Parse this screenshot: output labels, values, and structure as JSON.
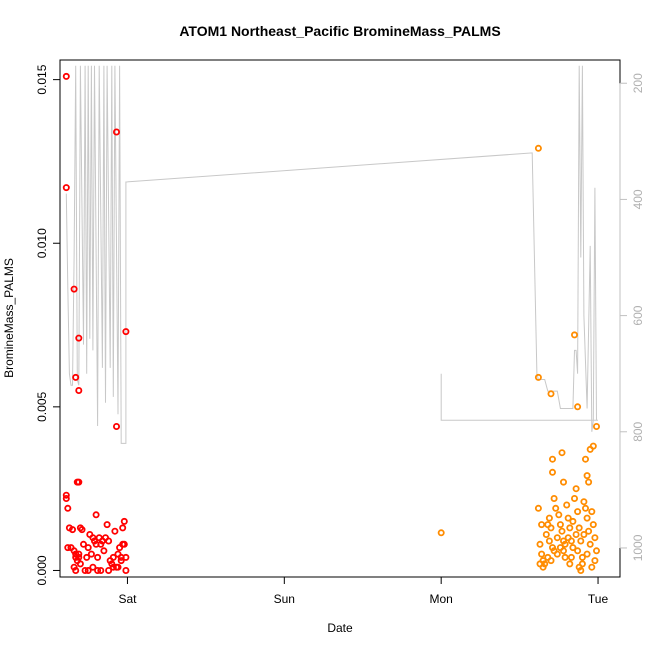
{
  "chart_data": {
    "type": "scatter",
    "title": "ATOM1 Northeast_Pacific BromineMass_PALMS",
    "xlabel": "Date",
    "ylabel": "BromineMass_PALMS",
    "x_ticks": [
      "Sat",
      "Sun",
      "Mon",
      "Tue"
    ],
    "x_unit": "days, 0 = Sat 00:00",
    "xlim": [
      -0.43,
      3.14
    ],
    "ylim": [
      -0.0002,
      0.0156
    ],
    "y_ticks": [
      0.0,
      0.005,
      0.01,
      0.015
    ],
    "y_tick_labels": [
      "0.000",
      "0.005",
      "0.010",
      "0.015"
    ],
    "y2_ticks": [
      200,
      400,
      600,
      800,
      1000
    ],
    "y2_tick_labels": [
      "200",
      "400",
      "600",
      "800",
      "1000"
    ],
    "y2lim": [
      1050,
      160
    ],
    "y2_axis_color": "#c0c0c0",
    "grid": false,
    "series": [
      {
        "color": "#ff0000",
        "points": [
          [
            -0.39,
            0.0151
          ],
          [
            -0.39,
            0.0117
          ],
          [
            -0.34,
            0.0086
          ],
          [
            -0.33,
            0.0059
          ],
          [
            -0.31,
            0.0071
          ],
          [
            -0.31,
            0.0055
          ],
          [
            -0.07,
            0.0134
          ],
          [
            -0.07,
            0.0044
          ],
          [
            -0.01,
            0.0073
          ],
          [
            -0.39,
            0.0023
          ],
          [
            -0.39,
            0.0022
          ],
          [
            -0.38,
            0.0019
          ],
          [
            -0.37,
            0.0013
          ],
          [
            -0.35,
            0.00125
          ],
          [
            -0.32,
            0.0027
          ],
          [
            -0.31,
            0.0027
          ],
          [
            -0.3,
            0.0013
          ],
          [
            -0.29,
            0.00125
          ],
          [
            -0.38,
            0.0007
          ],
          [
            -0.36,
            0.0007
          ],
          [
            -0.34,
            0.0006
          ],
          [
            -0.33,
            0.0005
          ],
          [
            -0.33,
            0.0004
          ],
          [
            -0.32,
            0.0003
          ],
          [
            -0.31,
            0.0005
          ],
          [
            -0.31,
            0.0004
          ],
          [
            -0.3,
            0.0002
          ],
          [
            -0.34,
            0.0001
          ],
          [
            -0.33,
            0.0
          ],
          [
            -0.28,
            0.0008
          ],
          [
            -0.27,
            0.0
          ],
          [
            -0.26,
            0.0004
          ],
          [
            -0.25,
            0.0007
          ],
          [
            -0.24,
            0.0011
          ],
          [
            -0.23,
            0.0005
          ],
          [
            -0.22,
            0.001
          ],
          [
            -0.21,
            0.0009
          ],
          [
            -0.2,
            0.0017
          ],
          [
            -0.2,
            0.0008
          ],
          [
            -0.19,
            0.0004
          ],
          [
            -0.18,
            0.001
          ],
          [
            -0.17,
            0.0008
          ],
          [
            -0.16,
            0.0009
          ],
          [
            -0.15,
            0.0006
          ],
          [
            -0.14,
            0.001
          ],
          [
            -0.13,
            0.0014
          ],
          [
            -0.12,
            0.0009
          ],
          [
            -0.11,
            0.0003
          ],
          [
            -0.1,
            0.0002
          ],
          [
            -0.09,
            0.0004
          ],
          [
            -0.08,
            0.0012
          ],
          [
            -0.07,
            0.0001
          ],
          [
            -0.06,
            0.0005
          ],
          [
            -0.05,
            0.0007
          ],
          [
            -0.04,
            0.0003
          ],
          [
            -0.03,
            0.0013
          ],
          [
            -0.02,
            0.0015
          ],
          [
            -0.02,
            0.0008
          ],
          [
            -0.01,
            0.0004
          ],
          [
            -0.01,
            0.0
          ],
          [
            -0.25,
            0.0
          ],
          [
            -0.22,
            0.0001
          ],
          [
            -0.19,
            0.0
          ],
          [
            -0.17,
            0.0
          ],
          [
            -0.12,
            0.0
          ],
          [
            -0.09,
            0.0001
          ],
          [
            -0.06,
            0.0001
          ],
          [
            -0.04,
            0.0004
          ],
          [
            -0.03,
            0.0008
          ]
        ]
      },
      {
        "color": "#ff8c00",
        "points": [
          [
            2.0,
            0.00115
          ],
          [
            2.62,
            0.0129
          ],
          [
            2.62,
            0.0059
          ],
          [
            2.7,
            0.0054
          ],
          [
            2.85,
            0.0072
          ],
          [
            2.87,
            0.005
          ],
          [
            2.99,
            0.0044
          ],
          [
            2.77,
            0.0036
          ],
          [
            2.95,
            0.0037
          ],
          [
            2.97,
            0.0038
          ],
          [
            2.92,
            0.0034
          ],
          [
            2.71,
            0.0034
          ],
          [
            2.71,
            0.003
          ],
          [
            2.93,
            0.0029
          ],
          [
            2.78,
            0.0027
          ],
          [
            2.94,
            0.0027
          ],
          [
            2.62,
            0.0019
          ],
          [
            2.63,
            0.0008
          ],
          [
            2.64,
            0.0005
          ],
          [
            2.65,
            0.0003
          ],
          [
            2.66,
            0.0002
          ],
          [
            2.67,
            0.0011
          ],
          [
            2.68,
            0.0014
          ],
          [
            2.69,
            0.0016
          ],
          [
            2.7,
            0.0013
          ],
          [
            2.71,
            0.0007
          ],
          [
            2.72,
            0.0022
          ],
          [
            2.73,
            0.0019
          ],
          [
            2.74,
            0.001
          ],
          [
            2.75,
            0.0017
          ],
          [
            2.76,
            0.0014
          ],
          [
            2.77,
            0.0012
          ],
          [
            2.78,
            0.0006
          ],
          [
            2.79,
            0.0004
          ],
          [
            2.8,
            0.002
          ],
          [
            2.81,
            0.0016
          ],
          [
            2.82,
            0.0013
          ],
          [
            2.83,
            0.0009
          ],
          [
            2.84,
            0.0007
          ],
          [
            2.85,
            0.0022
          ],
          [
            2.86,
            0.0025
          ],
          [
            2.87,
            0.0018
          ],
          [
            2.88,
            0.0013
          ],
          [
            2.89,
            0.0009
          ],
          [
            2.9,
            0.0004
          ],
          [
            2.91,
            0.0021
          ],
          [
            2.92,
            0.0019
          ],
          [
            2.93,
            0.0016
          ],
          [
            2.94,
            0.0012
          ],
          [
            2.95,
            0.0008
          ],
          [
            2.96,
            0.0018
          ],
          [
            2.97,
            0.0014
          ],
          [
            2.98,
            0.001
          ],
          [
            2.99,
            0.0006
          ],
          [
            2.63,
            0.0002
          ],
          [
            2.65,
            0.0001
          ],
          [
            2.7,
            0.0003
          ],
          [
            2.74,
            0.0005
          ],
          [
            2.79,
            0.0008
          ],
          [
            2.83,
            0.0004
          ],
          [
            2.86,
            0.0011
          ],
          [
            2.88,
            0.0001
          ],
          [
            2.89,
            0.0
          ],
          [
            2.9,
            0.0002
          ],
          [
            2.96,
            0.0001
          ],
          [
            2.68,
            0.0004
          ],
          [
            2.76,
            0.0007
          ],
          [
            2.81,
            0.001
          ],
          [
            2.84,
            0.0015
          ],
          [
            2.91,
            0.0011
          ],
          [
            2.93,
            0.0005
          ],
          [
            2.98,
            0.0003
          ],
          [
            2.72,
            0.0006
          ],
          [
            2.78,
            0.0009
          ],
          [
            2.82,
            0.0002
          ],
          [
            2.87,
            0.0006
          ],
          [
            2.64,
            0.0014
          ],
          [
            2.69,
            0.0009
          ]
        ]
      }
    ],
    "line_series": {
      "axis": "y2",
      "color": "#c8c8c8",
      "segments": [
        [
          [
            -0.39,
            390
          ],
          [
            -0.38,
            550
          ],
          [
            -0.37,
            700
          ],
          [
            -0.36,
            720
          ],
          [
            -0.35,
            720
          ],
          [
            -0.34,
            500
          ],
          [
            -0.33,
            170
          ],
          [
            -0.32,
            710
          ],
          [
            -0.31,
            720
          ],
          [
            -0.3,
            170
          ],
          [
            -0.28,
            650
          ],
          [
            -0.27,
            170
          ],
          [
            -0.26,
            700
          ],
          [
            -0.25,
            170
          ],
          [
            -0.24,
            640
          ],
          [
            -0.23,
            170
          ],
          [
            -0.22,
            660
          ],
          [
            -0.21,
            170
          ],
          [
            -0.19,
            790
          ],
          [
            -0.18,
            170
          ],
          [
            -0.16,
            690
          ],
          [
            -0.15,
            170
          ],
          [
            -0.14,
            750
          ],
          [
            -0.13,
            170
          ],
          [
            -0.11,
            690
          ],
          [
            -0.1,
            170
          ],
          [
            -0.09,
            740
          ],
          [
            -0.08,
            170
          ],
          [
            -0.06,
            770
          ],
          [
            -0.05,
            170
          ],
          [
            -0.04,
            820
          ],
          [
            -0.01,
            820
          ],
          [
            -0.01,
            370
          ],
          [
            2.58,
            320
          ],
          [
            2.61,
            700
          ],
          [
            2.62,
            710
          ],
          [
            2.64,
            710
          ],
          [
            2.66,
            710
          ],
          [
            2.68,
            730
          ],
          [
            2.7,
            730
          ],
          [
            2.72,
            730
          ],
          [
            2.74,
            730
          ],
          [
            2.76,
            760
          ],
          [
            2.78,
            760
          ],
          [
            2.8,
            760
          ],
          [
            2.82,
            760
          ],
          [
            2.84,
            760
          ],
          [
            2.85,
            660
          ],
          [
            2.86,
            660
          ],
          [
            2.87,
            700
          ],
          [
            2.88,
            170
          ],
          [
            2.89,
            500
          ],
          [
            2.9,
            170
          ],
          [
            2.91,
            600
          ],
          [
            2.93,
            760
          ],
          [
            2.95,
            480
          ],
          [
            2.96,
            800
          ],
          [
            2.97,
            780
          ],
          [
            2.98,
            380
          ],
          [
            2.99,
            780
          ]
        ],
        [
          [
            2.0,
            700
          ],
          [
            2.0,
            780
          ],
          [
            3.0,
            780
          ]
        ]
      ]
    }
  }
}
